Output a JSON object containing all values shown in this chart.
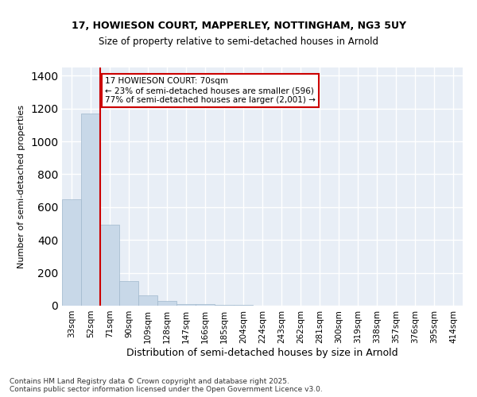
{
  "title_line1": "17, HOWIESON COURT, MAPPERLEY, NOTTINGHAM, NG3 5UY",
  "title_line2": "Size of property relative to semi-detached houses in Arnold",
  "xlabel": "Distribution of semi-detached houses by size in Arnold",
  "ylabel": "Number of semi-detached properties",
  "bar_color": "#c8d8e8",
  "bar_edge_color": "#a0b8cc",
  "property_line_color": "#cc0000",
  "property_size": 70,
  "annotation_text": "17 HOWIESON COURT: 70sqm\n← 23% of semi-detached houses are smaller (596)\n77% of semi-detached houses are larger (2,001) →",
  "bin_labels": [
    "33sqm",
    "52sqm",
    "71sqm",
    "90sqm",
    "109sqm",
    "128sqm",
    "147sqm",
    "166sqm",
    "185sqm",
    "204sqm",
    "224sqm",
    "243sqm",
    "262sqm",
    "281sqm",
    "300sqm",
    "319sqm",
    "338sqm",
    "357sqm",
    "376sqm",
    "395sqm",
    "414sqm"
  ],
  "values": [
    650,
    1170,
    495,
    150,
    65,
    30,
    12,
    8,
    5,
    3,
    1,
    0,
    0,
    0,
    0,
    0,
    0,
    0,
    0,
    0,
    0
  ],
  "ylim": [
    0,
    1450
  ],
  "yticks": [
    0,
    200,
    400,
    600,
    800,
    1000,
    1200,
    1400
  ],
  "background_color": "#e8eef6",
  "grid_color": "#ffffff",
  "footer_text": "Contains HM Land Registry data © Crown copyright and database right 2025.\nContains public sector information licensed under the Open Government Licence v3.0.",
  "annotation_box_color": "#ffffff",
  "annotation_box_edge": "#cc0000"
}
